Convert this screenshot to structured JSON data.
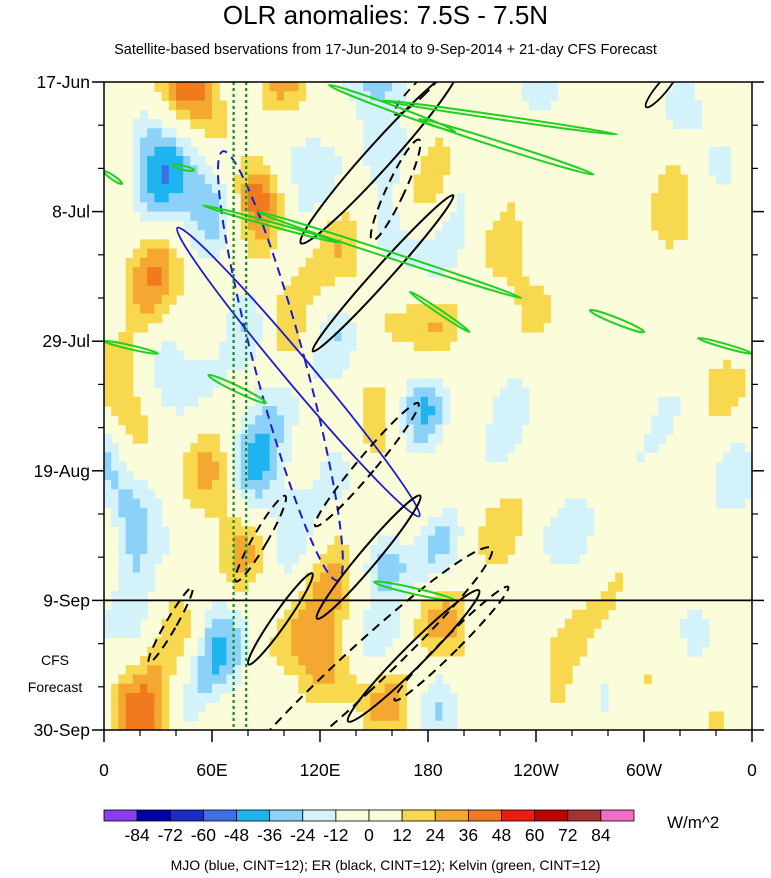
{
  "chart_data": {
    "type": "heatmap",
    "title": "OLR anomalies: 7.5S - 7.5N",
    "subtitle": "Satellite-based bservations from 17-Jun-2014 to 9-Sep-2014 + 21-day CFS Forecast",
    "x_ticks": [
      "0",
      "60E",
      "120E",
      "180",
      "120W",
      "60W",
      "0"
    ],
    "x_tick_lon": [
      0,
      60,
      120,
      180,
      240,
      300,
      360
    ],
    "y_ticks": [
      "17-Jun",
      "8-Jul",
      "29-Jul",
      "19-Aug",
      "9-Sep",
      "30-Sep"
    ],
    "y_tick_day": [
      0,
      21,
      42,
      63,
      84,
      105
    ],
    "ylim_days": [
      0,
      105
    ],
    "xlim_lon": [
      0,
      360
    ],
    "observation_end": "9-Sep",
    "forecast_label_line1": "CFS",
    "forecast_label_line2": "Forecast",
    "colorbar": {
      "unit": "W/m^2",
      "labels": [
        "-84",
        "-72",
        "-60",
        "-48",
        "-36",
        "-24",
        "-12",
        "0",
        "12",
        "24",
        "36",
        "48",
        "60",
        "72",
        "84"
      ],
      "colors": [
        "#8a3cf0",
        "#0000a8",
        "#1a2cc8",
        "#3f6fe6",
        "#1eb4f0",
        "#8cd2f8",
        "#d4f2fa",
        "#fbfcda",
        "#fbfcda",
        "#f8d84e",
        "#f4a832",
        "#f27a1e",
        "#ee1c10",
        "#c00000",
        "#a83232",
        "#f46cc8"
      ]
    },
    "reference_lines_lon": [
      72,
      79
    ],
    "contour_legend": "MJO (blue, CINT=12); ER (black, CINT=12); Kelvin (green, CINT=12)",
    "contours": {
      "mjo_color": "#1c1cd0",
      "er_color": "#000000",
      "kelvin_color": "#22d022"
    }
  }
}
